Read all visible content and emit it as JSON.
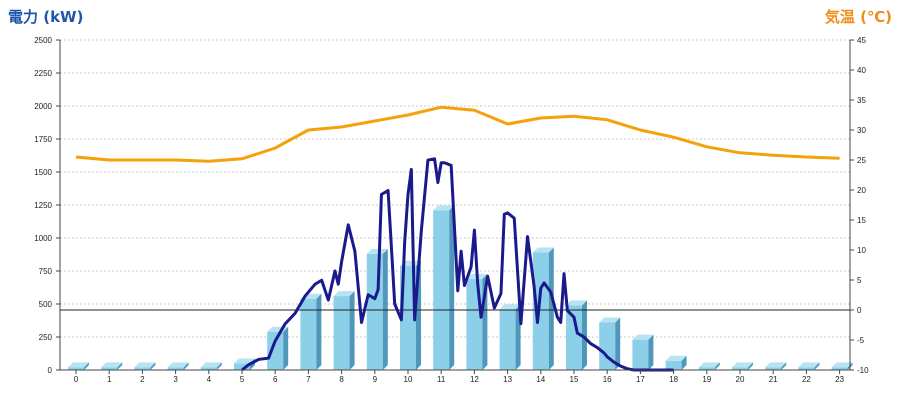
{
  "header": {
    "left_axis_title": "電力 (kW)",
    "right_axis_title": "気温 (℃)"
  },
  "colors": {
    "power_line": "#1a1a8c",
    "temperature_line": "#f5a10a",
    "bar_front": "#8ccfe8",
    "bar_side": "#4f98bb",
    "bar_top": "#b7e3f3",
    "left_title": "#1f56a8",
    "right_title": "#f08c1a"
  },
  "chart_data": {
    "type": "bar",
    "x_ticks": [
      "0",
      "1",
      "2",
      "3",
      "4",
      "5",
      "6",
      "7",
      "8",
      "9",
      "10",
      "11",
      "12",
      "13",
      "14",
      "15",
      "16",
      "17",
      "18",
      "19",
      "20",
      "21",
      "22",
      "23"
    ],
    "y_left": {
      "label": "電力 (kW)",
      "ylim": [
        0,
        2500
      ],
      "ticks": [
        "0",
        "250",
        "500",
        "750",
        "1000",
        "1250",
        "1500",
        "1750",
        "2000",
        "2250",
        "2500"
      ]
    },
    "y_right": {
      "label": "気温 (℃)",
      "ylim": [
        -10,
        45
      ],
      "ticks": [
        "-10",
        "-5",
        "0",
        "5",
        "10",
        "15",
        "20",
        "25",
        "30",
        "35",
        "40",
        "45"
      ]
    },
    "grid": true,
    "reference_line_right_axis": 0,
    "series": [
      {
        "type": "bar",
        "axis": "left",
        "x": [
          0,
          1,
          2,
          3,
          4,
          5,
          6,
          7,
          8,
          9,
          10,
          11,
          12,
          13,
          14,
          15,
          16,
          17,
          18,
          19,
          20,
          21,
          22,
          23
        ],
        "values": [
          20,
          20,
          20,
          20,
          20,
          50,
          290,
          540,
          560,
          880,
          790,
          1210,
          690,
          460,
          890,
          490,
          360,
          230,
          70,
          20,
          20,
          20,
          20,
          20
        ]
      },
      {
        "type": "line",
        "axis": "left",
        "x": [
          5,
          5.2,
          5.5,
          5.8,
          6,
          6.3,
          6.6,
          6.9,
          7.2,
          7.4,
          7.6,
          7.8,
          7.9,
          8.0,
          8.2,
          8.4,
          8.6,
          8.8,
          9.0,
          9.1,
          9.2,
          9.4,
          9.6,
          9.8,
          9.9,
          10.0,
          10.1,
          10.2,
          10.4,
          10.6,
          10.8,
          10.9,
          11.0,
          11.1,
          11.3,
          11.5,
          11.6,
          11.7,
          11.9,
          12.0,
          12.1,
          12.2,
          12.4,
          12.6,
          12.8,
          12.9,
          13.0,
          13.2,
          13.4,
          13.6,
          13.8,
          13.9,
          14.0,
          14.1,
          14.3,
          14.5,
          14.6,
          14.7,
          14.8,
          15.0,
          15.1,
          15.3,
          15.5,
          15.7,
          15.9,
          16.0,
          16.2,
          16.4,
          16.6,
          16.8,
          17.0,
          17.2,
          17.4,
          17.6,
          17.8,
          18.0
        ],
        "values": [
          0,
          40,
          80,
          90,
          220,
          350,
          430,
          560,
          650,
          680,
          530,
          750,
          650,
          820,
          1100,
          900,
          360,
          570,
          540,
          610,
          1330,
          1360,
          500,
          380,
          970,
          1330,
          1520,
          380,
          1050,
          1590,
          1600,
          1420,
          1570,
          1570,
          1550,
          600,
          900,
          640,
          780,
          1060,
          650,
          400,
          710,
          470,
          580,
          1180,
          1190,
          1150,
          350,
          1010,
          630,
          360,
          620,
          660,
          590,
          400,
          360,
          730,
          450,
          400,
          280,
          250,
          200,
          170,
          130,
          100,
          60,
          30,
          10,
          0,
          0,
          0,
          0,
          0,
          0,
          0
        ]
      },
      {
        "type": "line",
        "axis": "right",
        "x": [
          0,
          1,
          2,
          3,
          4,
          5,
          6,
          7,
          8,
          9,
          10,
          11,
          12,
          13,
          14,
          15,
          16,
          17,
          18,
          19,
          20,
          21,
          22,
          23
        ],
        "values": [
          25.5,
          25.0,
          25.0,
          25.0,
          24.8,
          25.2,
          27.0,
          30.0,
          30.5,
          31.5,
          32.5,
          33.8,
          33.3,
          31.0,
          32.0,
          32.3,
          31.7,
          30.0,
          28.8,
          27.2,
          26.2,
          25.8,
          25.5,
          25.3
        ]
      }
    ]
  }
}
